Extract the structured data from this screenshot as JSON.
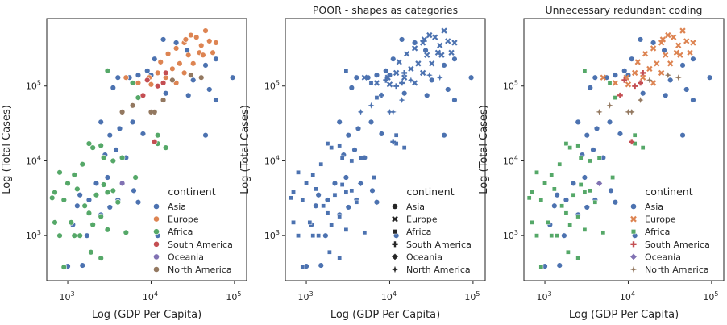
{
  "colors": {
    "Asia": "#4c72b0",
    "Europe": "#dd8452",
    "Africa": "#55a868",
    "South America": "#c44e52",
    "Oceania": "#8172b3",
    "North America": "#937860"
  },
  "markers": {
    "Asia": "circle",
    "Europe": "x",
    "Africa": "square",
    "South America": "plus",
    "Oceania": "diamond",
    "North America": "star"
  },
  "chart_data": [
    {
      "type": "scatter",
      "title": "",
      "xlabel": "Log (GDP Per Capita)",
      "ylabel": "Log (Total Cases)",
      "xscale": "log",
      "yscale": "log",
      "xlim": [
        560,
        140000
      ],
      "ylim": [
        250,
        800000
      ],
      "xticks": [
        {
          "value": 1000,
          "base": "10",
          "exp": "3"
        },
        {
          "value": 10000,
          "base": "10",
          "exp": "4"
        },
        {
          "value": 100000,
          "base": "10",
          "exp": "5"
        }
      ],
      "yticks": [
        {
          "value": 1000,
          "base": "10",
          "exp": "3"
        },
        {
          "value": 10000,
          "base": "10",
          "exp": "4"
        },
        {
          "value": 100000,
          "base": "10",
          "exp": "5"
        }
      ],
      "hue": "color",
      "legend": {
        "title": "continent",
        "position": "lower-right",
        "entries": [
          "Asia",
          "Europe",
          "Africa",
          "South America",
          "Oceania",
          "North America"
        ]
      }
    },
    {
      "type": "scatter",
      "title": "POOR - shapes as categories",
      "xlabel": "Log (GDP Per Capita)",
      "ylabel": "Log (Total Cases)",
      "xscale": "log",
      "yscale": "log",
      "xlim": [
        560,
        140000
      ],
      "ylim": [
        250,
        800000
      ],
      "xticks": [
        {
          "value": 1000,
          "base": "10",
          "exp": "3"
        },
        {
          "value": 10000,
          "base": "10",
          "exp": "4"
        },
        {
          "value": 100000,
          "base": "10",
          "exp": "5"
        }
      ],
      "yticks": [
        {
          "value": 1000,
          "base": "10",
          "exp": "3"
        },
        {
          "value": 10000,
          "base": "10",
          "exp": "4"
        },
        {
          "value": 100000,
          "base": "10",
          "exp": "5"
        }
      ],
      "hue": "shape",
      "legend": {
        "title": "continent",
        "position": "lower-right",
        "entries": [
          "Asia",
          "Europe",
          "Africa",
          "South America",
          "Oceania",
          "North America"
        ]
      }
    },
    {
      "type": "scatter",
      "title": "Unnecessary redundant coding",
      "xlabel": "Log (GDP Per Capita)",
      "ylabel": "Log (Total Cases)",
      "xscale": "log",
      "yscale": "log",
      "xlim": [
        560,
        140000
      ],
      "ylim": [
        250,
        800000
      ],
      "xticks": [
        {
          "value": 1000,
          "base": "10",
          "exp": "3"
        },
        {
          "value": 10000,
          "base": "10",
          "exp": "4"
        },
        {
          "value": 100000,
          "base": "10",
          "exp": "5"
        }
      ],
      "yticks": [
        {
          "value": 1000,
          "base": "10",
          "exp": "3"
        },
        {
          "value": 10000,
          "base": "10",
          "exp": "4"
        },
        {
          "value": 100000,
          "base": "10",
          "exp": "5"
        }
      ],
      "hue": "both",
      "legend": {
        "title": "continent",
        "position": "lower-right",
        "entries": [
          "Asia",
          "Europe",
          "Africa",
          "South America",
          "Oceania",
          "North America"
        ]
      }
    }
  ],
  "points": [
    {
      "c": "Asia",
      "x": 14000,
      "y": 420000
    },
    {
      "c": "Asia",
      "x": 20000,
      "y": 380000
    },
    {
      "c": "Asia",
      "x": 27000,
      "y": 300000
    },
    {
      "c": "Asia",
      "x": 60000,
      "y": 230000
    },
    {
      "c": "Asia",
      "x": 95000,
      "y": 130000
    },
    {
      "c": "Asia",
      "x": 45000,
      "y": 190000
    },
    {
      "c": "Asia",
      "x": 32000,
      "y": 120000
    },
    {
      "c": "Asia",
      "x": 9000,
      "y": 160000
    },
    {
      "c": "Asia",
      "x": 11000,
      "y": 230000
    },
    {
      "c": "Asia",
      "x": 4000,
      "y": 130000
    },
    {
      "c": "Asia",
      "x": 7000,
      "y": 140000
    },
    {
      "c": "Asia",
      "x": 10000,
      "y": 140000
    },
    {
      "c": "Asia",
      "x": 3500,
      "y": 95000
    },
    {
      "c": "Asia",
      "x": 5500,
      "y": 130000
    },
    {
      "c": "Asia",
      "x": 15000,
      "y": 80000
    },
    {
      "c": "Asia",
      "x": 28000,
      "y": 75000
    },
    {
      "c": "Asia",
      "x": 50000,
      "y": 90000
    },
    {
      "c": "Asia",
      "x": 60000,
      "y": 65000
    },
    {
      "c": "Asia",
      "x": 2500,
      "y": 33000
    },
    {
      "c": "Asia",
      "x": 3200,
      "y": 22000
    },
    {
      "c": "Asia",
      "x": 4200,
      "y": 27000
    },
    {
      "c": "Asia",
      "x": 6000,
      "y": 33000
    },
    {
      "c": "Asia",
      "x": 8000,
      "y": 23000
    },
    {
      "c": "Asia",
      "x": 2800,
      "y": 12000
    },
    {
      "c": "Asia",
      "x": 3800,
      "y": 14000
    },
    {
      "c": "Asia",
      "x": 5000,
      "y": 11000
    },
    {
      "c": "Asia",
      "x": 6200,
      "y": 4000
    },
    {
      "c": "Asia",
      "x": 3000,
      "y": 6000
    },
    {
      "c": "Asia",
      "x": 2200,
      "y": 5000
    },
    {
      "c": "Asia",
      "x": 1800,
      "y": 3000
    },
    {
      "c": "Asia",
      "x": 1400,
      "y": 3500
    },
    {
      "c": "Asia",
      "x": 1300,
      "y": 2500
    },
    {
      "c": "Asia",
      "x": 1700,
      "y": 1000
    },
    {
      "c": "Asia",
      "x": 1150,
      "y": 1400
    },
    {
      "c": "Asia",
      "x": 1500,
      "y": 400
    },
    {
      "c": "Asia",
      "x": 1000,
      "y": 390
    },
    {
      "c": "Asia",
      "x": 2500,
      "y": 1900
    },
    {
      "c": "Asia",
      "x": 3200,
      "y": 2400
    },
    {
      "c": "Asia",
      "x": 4000,
      "y": 3000
    },
    {
      "c": "Asia",
      "x": 7000,
      "y": 2800
    },
    {
      "c": "Asia",
      "x": 45000,
      "y": 22000
    },
    {
      "c": "Asia",
      "x": 12000,
      "y": 1000
    },
    {
      "c": "Europe",
      "x": 30000,
      "y": 480000
    },
    {
      "c": "Europe",
      "x": 45000,
      "y": 550000
    },
    {
      "c": "Europe",
      "x": 35000,
      "y": 450000
    },
    {
      "c": "Europe",
      "x": 25000,
      "y": 380000
    },
    {
      "c": "Europe",
      "x": 40000,
      "y": 350000
    },
    {
      "c": "Europe",
      "x": 20000,
      "y": 320000
    },
    {
      "c": "Europe",
      "x": 16000,
      "y": 270000
    },
    {
      "c": "Europe",
      "x": 50000,
      "y": 400000
    },
    {
      "c": "Europe",
      "x": 55000,
      "y": 280000
    },
    {
      "c": "Europe",
      "x": 38000,
      "y": 280000
    },
    {
      "c": "Europe",
      "x": 28000,
      "y": 260000
    },
    {
      "c": "Europe",
      "x": 13000,
      "y": 210000
    },
    {
      "c": "Europe",
      "x": 22000,
      "y": 200000
    },
    {
      "c": "Europe",
      "x": 18000,
      "y": 170000
    },
    {
      "c": "Europe",
      "x": 12000,
      "y": 150000
    },
    {
      "c": "Europe",
      "x": 9500,
      "y": 130000
    },
    {
      "c": "Europe",
      "x": 15000,
      "y": 130000
    },
    {
      "c": "Europe",
      "x": 25000,
      "y": 150000
    },
    {
      "c": "Europe",
      "x": 32000,
      "y": 200000
    },
    {
      "c": "Europe",
      "x": 42000,
      "y": 260000
    },
    {
      "c": "Europe",
      "x": 60000,
      "y": 380000
    },
    {
      "c": "Europe",
      "x": 10000,
      "y": 105000
    },
    {
      "c": "Europe",
      "x": 5000,
      "y": 130000
    },
    {
      "c": "Europe",
      "x": 7000,
      "y": 110000
    },
    {
      "c": "Europe",
      "x": 20000,
      "y": 110000
    },
    {
      "c": "Europe",
      "x": 26000,
      "y": 420000
    },
    {
      "c": "Africa",
      "x": 3000,
      "y": 160000
    },
    {
      "c": "Africa",
      "x": 7000,
      "y": 70000
    },
    {
      "c": "Africa",
      "x": 6000,
      "y": 110000
    },
    {
      "c": "Africa",
      "x": 1800,
      "y": 17000
    },
    {
      "c": "Africa",
      "x": 2500,
      "y": 16000
    },
    {
      "c": "Africa",
      "x": 2000,
      "y": 15000
    },
    {
      "c": "Africa",
      "x": 1500,
      "y": 9000
    },
    {
      "c": "Africa",
      "x": 2700,
      "y": 11000
    },
    {
      "c": "Africa",
      "x": 3500,
      "y": 10000
    },
    {
      "c": "Africa",
      "x": 12000,
      "y": 22000
    },
    {
      "c": "Africa",
      "x": 12000,
      "y": 17000
    },
    {
      "c": "Africa",
      "x": 15000,
      "y": 15000
    },
    {
      "c": "Africa",
      "x": 4500,
      "y": 11000
    },
    {
      "c": "Africa",
      "x": 1200,
      "y": 6500
    },
    {
      "c": "Africa",
      "x": 1000,
      "y": 5000
    },
    {
      "c": "Africa",
      "x": 800,
      "y": 7000
    },
    {
      "c": "Africa",
      "x": 700,
      "y": 3800
    },
    {
      "c": "Africa",
      "x": 650,
      "y": 3200
    },
    {
      "c": "Africa",
      "x": 900,
      "y": 3000
    },
    {
      "c": "Africa",
      "x": 1300,
      "y": 4200
    },
    {
      "c": "Africa",
      "x": 1600,
      "y": 2500
    },
    {
      "c": "Africa",
      "x": 1800,
      "y": 2000
    },
    {
      "c": "Africa",
      "x": 2200,
      "y": 3500
    },
    {
      "c": "Africa",
      "x": 2700,
      "y": 4800
    },
    {
      "c": "Africa",
      "x": 3000,
      "y": 3800
    },
    {
      "c": "Africa",
      "x": 3500,
      "y": 4000
    },
    {
      "c": "Africa",
      "x": 4000,
      "y": 2800
    },
    {
      "c": "Africa",
      "x": 4500,
      "y": 5000
    },
    {
      "c": "Africa",
      "x": 6500,
      "y": 6000
    },
    {
      "c": "Africa",
      "x": 700,
      "y": 1500
    },
    {
      "c": "Africa",
      "x": 800,
      "y": 1000
    },
    {
      "c": "Africa",
      "x": 1100,
      "y": 1500
    },
    {
      "c": "Africa",
      "x": 1200,
      "y": 1000
    },
    {
      "c": "Africa",
      "x": 1400,
      "y": 1000
    },
    {
      "c": "Africa",
      "x": 2000,
      "y": 1400
    },
    {
      "c": "Africa",
      "x": 2500,
      "y": 1800
    },
    {
      "c": "Africa",
      "x": 3000,
      "y": 1200
    },
    {
      "c": "Africa",
      "x": 5000,
      "y": 1100
    },
    {
      "c": "Africa",
      "x": 1900,
      "y": 600
    },
    {
      "c": "Africa",
      "x": 2500,
      "y": 500
    },
    {
      "c": "Africa",
      "x": 900,
      "y": 380
    },
    {
      "c": "South America",
      "x": 12000,
      "y": 100000
    },
    {
      "c": "South America",
      "x": 15000,
      "y": 150000
    },
    {
      "c": "South America",
      "x": 9000,
      "y": 120000
    },
    {
      "c": "South America",
      "x": 8000,
      "y": 75000
    },
    {
      "c": "South America",
      "x": 14000,
      "y": 110000
    },
    {
      "c": "South America",
      "x": 11000,
      "y": 18000
    },
    {
      "c": "Oceania",
      "x": 4500,
      "y": 5000
    },
    {
      "c": "North America",
      "x": 14000,
      "y": 65000
    },
    {
      "c": "North America",
      "x": 10000,
      "y": 45000
    },
    {
      "c": "North America",
      "x": 11000,
      "y": 45000
    },
    {
      "c": "North America",
      "x": 18000,
      "y": 120000
    },
    {
      "c": "North America",
      "x": 6000,
      "y": 55000
    },
    {
      "c": "North America",
      "x": 4500,
      "y": 45000
    },
    {
      "c": "North America",
      "x": 30000,
      "y": 140000
    },
    {
      "c": "North America",
      "x": 40000,
      "y": 130000
    }
  ]
}
